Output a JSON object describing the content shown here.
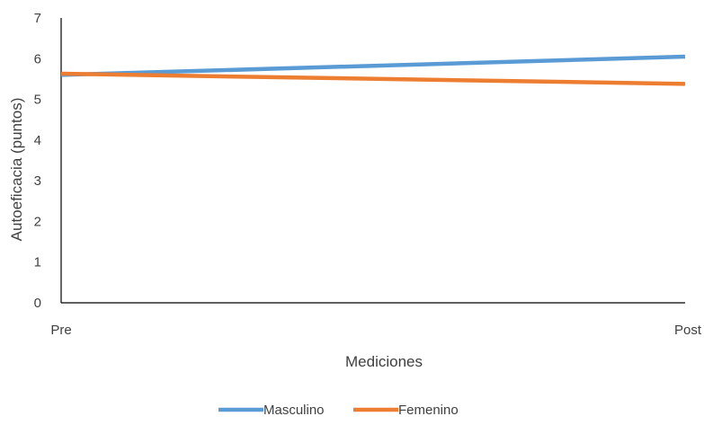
{
  "chart_data": {
    "type": "line",
    "title": "",
    "xlabel": "Mediciones",
    "ylabel": "Autoeficacia (puntos)",
    "categories": [
      "Pre",
      "Post"
    ],
    "ylim": [
      0,
      7
    ],
    "yticks": [
      0,
      1,
      2,
      3,
      4,
      5,
      6,
      7
    ],
    "grid": false,
    "legend_position": "bottom",
    "series": [
      {
        "name": "Masculino",
        "values": [
          5.6,
          6.05
        ],
        "color": "#5B9BD5"
      },
      {
        "name": "Femenino",
        "values": [
          5.63,
          5.38
        ],
        "color": "#ED7D31"
      }
    ]
  }
}
